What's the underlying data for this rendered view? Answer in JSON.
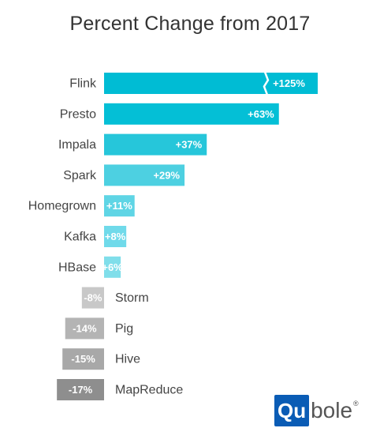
{
  "chart_data": {
    "type": "bar",
    "orientation": "horizontal",
    "title": "Percent Change from 2017",
    "categories": [
      "Flink",
      "Presto",
      "Impala",
      "Spark",
      "Homegrown",
      "Kafka",
      "HBase",
      "Storm",
      "Pig",
      "Hive",
      "MapReduce"
    ],
    "values": [
      125,
      63,
      37,
      29,
      11,
      8,
      6,
      -8,
      -14,
      -15,
      -17
    ],
    "value_labels": [
      "+125%",
      "+63%",
      "+37%",
      "+29%",
      "+11%",
      "+8%",
      "+6%",
      "-8%",
      "-14%",
      "-15%",
      "-17%"
    ],
    "units": "%",
    "axis_break_on": "Flink",
    "grid": false,
    "legend": "none",
    "colors": {
      "positive": [
        "#00bcd4",
        "#04bfd6",
        "#26c6da",
        "#4dd0e1",
        "#5fd5e5",
        "#70daea",
        "#80deea"
      ],
      "negative": [
        "#c8c8c8",
        "#b4b4b4",
        "#a8a8a8",
        "#8e8e8e"
      ]
    }
  },
  "logo": {
    "box_text": "Qu",
    "rest_text": "bole",
    "registered_mark": "®"
  }
}
